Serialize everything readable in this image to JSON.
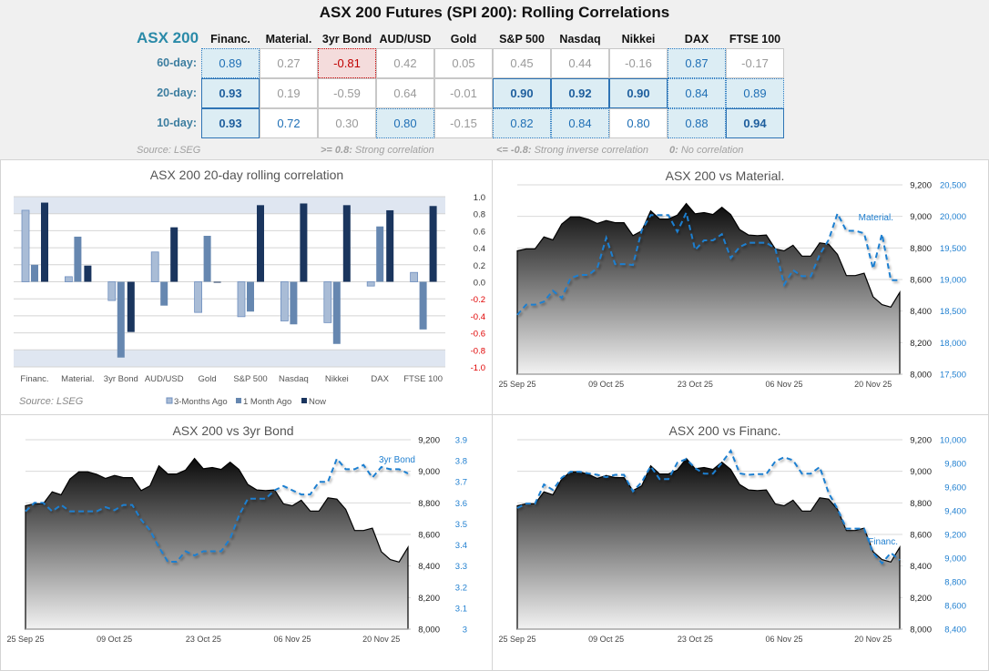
{
  "title": "ASX 200 Futures (SPI 200): Rolling Correlations",
  "table": {
    "corner": "ASX 200",
    "columns": [
      "Financ.",
      "Material.",
      "3yr Bond",
      "AUD/USD",
      "Gold",
      "S&P 500",
      "Nasdaq",
      "Nikkei",
      "DAX",
      "FTSE 100"
    ],
    "rows": [
      {
        "label": "60-day:",
        "cells": [
          {
            "v": "0.89",
            "tone": "hl"
          },
          {
            "v": "0.27",
            "tone": "gray"
          },
          {
            "v": "-0.81",
            "tone": "neg"
          },
          {
            "v": "0.42",
            "tone": "gray"
          },
          {
            "v": "0.05",
            "tone": "gray"
          },
          {
            "v": "0.45",
            "tone": "gray"
          },
          {
            "v": "0.44",
            "tone": "gray"
          },
          {
            "v": "-0.16",
            "tone": "gray"
          },
          {
            "v": "0.87",
            "tone": "hl"
          },
          {
            "v": "-0.17",
            "tone": "gray"
          }
        ]
      },
      {
        "label": "20-day:",
        "cells": [
          {
            "v": "0.93",
            "tone": "bold"
          },
          {
            "v": "0.19",
            "tone": "gray"
          },
          {
            "v": "-0.59",
            "tone": "gray"
          },
          {
            "v": "0.64",
            "tone": "gray"
          },
          {
            "v": "-0.01",
            "tone": "gray"
          },
          {
            "v": "0.90",
            "tone": "bold"
          },
          {
            "v": "0.92",
            "tone": "bold"
          },
          {
            "v": "0.90",
            "tone": "bold"
          },
          {
            "v": "0.84",
            "tone": "hl"
          },
          {
            "v": "0.89",
            "tone": "hl"
          }
        ]
      },
      {
        "label": "10-day:",
        "cells": [
          {
            "v": "0.93",
            "tone": "bold"
          },
          {
            "v": "0.72",
            "tone": "blue"
          },
          {
            "v": "0.30",
            "tone": "gray"
          },
          {
            "v": "0.80",
            "tone": "hl"
          },
          {
            "v": "-0.15",
            "tone": "gray"
          },
          {
            "v": "0.82",
            "tone": "hl"
          },
          {
            "v": "0.84",
            "tone": "hl"
          },
          {
            "v": "0.80",
            "tone": "blue"
          },
          {
            "v": "0.88",
            "tone": "hl"
          },
          {
            "v": "0.94",
            "tone": "bold"
          }
        ]
      }
    ],
    "footer": {
      "source": "Source: LSEG",
      "strong_key": ">= 0.8:",
      "strong_text": "Strong correlation",
      "inverse_key": "<= -0.8:",
      "inverse_text": "Strong inverse correlation",
      "none_key": "0:",
      "none_text": "No correlation"
    }
  },
  "colors": {
    "now": "#1a355e",
    "one_month": "#6687b0",
    "three_month": "#a9bcd6",
    "band": "#dfe6f1",
    "line": "#1f7fd0",
    "negative_tick": "#e00000"
  },
  "chart_data": [
    {
      "type": "bar",
      "title": "ASX 200 20-day rolling correlation",
      "categories": [
        "Financ.",
        "Material.",
        "3yr Bond",
        "AUD/USD",
        "Gold",
        "S&P 500",
        "Nasdaq",
        "Nikkei",
        "DAX",
        "FTSE 100"
      ],
      "series": [
        {
          "name": "3-Months Ago",
          "values": [
            0.84,
            0.06,
            -0.22,
            0.35,
            -0.36,
            -0.41,
            -0.46,
            -0.48,
            -0.05,
            0.11
          ]
        },
        {
          "name": "1 Month Ago",
          "values": [
            0.2,
            0.53,
            -0.89,
            -0.28,
            0.54,
            -0.35,
            -0.5,
            -0.73,
            0.65,
            -0.56
          ]
        },
        {
          "name": "Now",
          "values": [
            0.93,
            0.19,
            -0.59,
            0.64,
            -0.01,
            0.9,
            0.92,
            0.9,
            0.84,
            0.89
          ]
        }
      ],
      "ylim": [
        -1.0,
        1.0
      ],
      "yticks": [
        "1.0",
        "0.8",
        "0.6",
        "0.4",
        "0.2",
        "0.0",
        "-0.2",
        "-0.4",
        "-0.6",
        "-0.8",
        "-1.0"
      ],
      "bands": [
        [
          0.8,
          1.0
        ],
        [
          -1.0,
          -0.8
        ]
      ],
      "grid": true,
      "legend": "bottom",
      "source": "Source: LSEG"
    },
    {
      "type": "area",
      "title": "ASX 200 vs Material.",
      "series_label": "Material.",
      "xticks": [
        "25 Sep 25",
        "09 Oct 25",
        "23 Oct 25",
        "06 Nov 25",
        "20 Nov 25"
      ],
      "yticks_left": [
        "9,200",
        "9,000",
        "8,800",
        "8,600",
        "8,400",
        "8,200",
        "8,000"
      ],
      "yticks_right": [
        "20,500",
        "20,000",
        "19,500",
        "19,000",
        "18,500",
        "18,000",
        "17,500"
      ],
      "ylim_left": [
        8000,
        9200
      ],
      "ylim_right": [
        17500,
        20500
      ],
      "x": [
        "2025-09-25",
        "2025-09-26",
        "2025-09-29",
        "2025-09-30",
        "2025-10-01",
        "2025-10-02",
        "2025-10-03",
        "2025-10-06",
        "2025-10-07",
        "2025-10-08",
        "2025-10-09",
        "2025-10-10",
        "2025-10-13",
        "2025-10-14",
        "2025-10-15",
        "2025-10-16",
        "2025-10-17",
        "2025-10-20",
        "2025-10-21",
        "2025-10-22",
        "2025-10-23",
        "2025-10-24",
        "2025-10-27",
        "2025-10-28",
        "2025-10-29",
        "2025-10-30",
        "2025-10-31",
        "2025-11-03",
        "2025-11-04",
        "2025-11-05",
        "2025-11-06",
        "2025-11-07",
        "2025-11-10",
        "2025-11-11",
        "2025-11-12",
        "2025-11-13",
        "2025-11-14",
        "2025-11-17",
        "2025-11-18",
        "2025-11-19",
        "2025-11-20",
        "2025-11-21",
        "2025-11-24",
        "2025-11-25"
      ],
      "asx200": [
        8782,
        8794,
        8794,
        8870,
        8851,
        8951,
        8997,
        8997,
        8981,
        8955,
        8974,
        8960,
        8960,
        8878,
        8908,
        9035,
        8983,
        8983,
        9008,
        9081,
        9016,
        9024,
        9012,
        9058,
        9012,
        8916,
        8882,
        8878,
        8882,
        8794,
        8782,
        8817,
        8748,
        8748,
        8832,
        8824,
        8759,
        8625,
        8625,
        8640,
        8491,
        8441,
        8425,
        8518
      ],
      "other": [
        18439,
        18602,
        18602,
        18650,
        18822,
        18707,
        19024,
        19072,
        19072,
        19182,
        19661,
        19244,
        19244,
        19230,
        19781,
        20020,
        20020,
        20020,
        19757,
        20059,
        19469,
        19620,
        19620,
        19718,
        19340,
        19517,
        19583,
        19583,
        19583,
        19493,
        18918,
        19148,
        19052,
        19052,
        19397,
        19627,
        20044,
        19771,
        19771,
        19733,
        19172,
        19723,
        18990,
        18990
      ]
    },
    {
      "type": "area",
      "title": "ASX 200 vs 3yr Bond",
      "series_label": "3yr Bond",
      "xticks": [
        "25 Sep 25",
        "09 Oct 25",
        "23 Oct 25",
        "06 Nov 25",
        "20 Nov 25"
      ],
      "yticks_left": [
        "9,200",
        "9,000",
        "8,800",
        "8,600",
        "8,400",
        "8,200",
        "8,000"
      ],
      "yticks_right": [
        "3.9",
        "3.8",
        "3.7",
        "3.6",
        "3.5",
        "3.4",
        "3.3",
        "3.2",
        "3.1",
        "3"
      ],
      "ylim_left": [
        8000,
        9200
      ],
      "ylim_right": [
        3.0,
        3.9
      ],
      "x": [
        "2025-09-25",
        "2025-09-26",
        "2025-09-29",
        "2025-09-30",
        "2025-10-01",
        "2025-10-02",
        "2025-10-03",
        "2025-10-06",
        "2025-10-07",
        "2025-10-08",
        "2025-10-09",
        "2025-10-10",
        "2025-10-13",
        "2025-10-14",
        "2025-10-15",
        "2025-10-16",
        "2025-10-17",
        "2025-10-20",
        "2025-10-21",
        "2025-10-22",
        "2025-10-23",
        "2025-10-24",
        "2025-10-27",
        "2025-10-28",
        "2025-10-29",
        "2025-10-30",
        "2025-10-31",
        "2025-11-03",
        "2025-11-04",
        "2025-11-05",
        "2025-11-06",
        "2025-11-07",
        "2025-11-10",
        "2025-11-11",
        "2025-11-12",
        "2025-11-13",
        "2025-11-14",
        "2025-11-17",
        "2025-11-18",
        "2025-11-19",
        "2025-11-20",
        "2025-11-21",
        "2025-11-24",
        "2025-11-25"
      ],
      "asx200": [
        8782,
        8794,
        8794,
        8870,
        8851,
        8951,
        8997,
        8997,
        8981,
        8955,
        8974,
        8960,
        8960,
        8878,
        8908,
        9035,
        8983,
        8983,
        9008,
        9081,
        9016,
        9024,
        9012,
        9058,
        9012,
        8916,
        8882,
        8878,
        8882,
        8794,
        8782,
        8817,
        8748,
        8748,
        8832,
        8824,
        8759,
        8625,
        8625,
        8640,
        8491,
        8441,
        8425,
        8518
      ],
      "other": [
        3.56,
        3.6,
        3.6,
        3.56,
        3.59,
        3.56,
        3.56,
        3.56,
        3.56,
        3.58,
        3.565,
        3.59,
        3.59,
        3.52,
        3.47,
        3.39,
        3.32,
        3.32,
        3.37,
        3.35,
        3.37,
        3.37,
        3.37,
        3.43,
        3.54,
        3.62,
        3.62,
        3.62,
        3.66,
        3.68,
        3.66,
        3.64,
        3.64,
        3.7,
        3.7,
        3.81,
        3.76,
        3.76,
        3.78,
        3.72,
        3.77,
        3.76,
        3.76,
        3.74
      ]
    },
    {
      "type": "area",
      "title": "ASX 200 vs Financ.",
      "series_label": "Financ.",
      "xticks": [
        "25 Sep 25",
        "09 Oct 25",
        "23 Oct 25",
        "06 Nov 25",
        "20 Nov 25"
      ],
      "yticks_left": [
        "9,200",
        "9,000",
        "8,800",
        "8,600",
        "8,400",
        "8,200",
        "8,000"
      ],
      "yticks_right": [
        "10,000",
        "9,800",
        "9,600",
        "9,400",
        "9,200",
        "9,000",
        "8,800",
        "8,600",
        "8,400"
      ],
      "ylim_left": [
        8000,
        9200
      ],
      "ylim_right": [
        8400,
        10000
      ],
      "x": [
        "2025-09-25",
        "2025-09-26",
        "2025-09-29",
        "2025-09-30",
        "2025-10-01",
        "2025-10-02",
        "2025-10-03",
        "2025-10-06",
        "2025-10-07",
        "2025-10-08",
        "2025-10-09",
        "2025-10-10",
        "2025-10-13",
        "2025-10-14",
        "2025-10-15",
        "2025-10-16",
        "2025-10-17",
        "2025-10-20",
        "2025-10-21",
        "2025-10-22",
        "2025-10-23",
        "2025-10-24",
        "2025-10-27",
        "2025-10-28",
        "2025-10-29",
        "2025-10-30",
        "2025-10-31",
        "2025-11-03",
        "2025-11-04",
        "2025-11-05",
        "2025-11-06",
        "2025-11-07",
        "2025-11-10",
        "2025-11-11",
        "2025-11-12",
        "2025-11-13",
        "2025-11-14",
        "2025-11-17",
        "2025-11-18",
        "2025-11-19",
        "2025-11-20",
        "2025-11-21",
        "2025-11-24",
        "2025-11-25"
      ],
      "asx200": [
        8782,
        8794,
        8794,
        8870,
        8851,
        8951,
        8997,
        8997,
        8981,
        8955,
        8974,
        8960,
        8960,
        8878,
        8908,
        9035,
        8983,
        8983,
        9008,
        9081,
        9016,
        9024,
        9012,
        9058,
        9012,
        8916,
        8882,
        8878,
        8882,
        8794,
        8782,
        8817,
        8748,
        8748,
        8832,
        8824,
        8759,
        8625,
        8625,
        8640,
        8491,
        8441,
        8425,
        8518
      ],
      "other": [
        9423,
        9461,
        9461,
        9622,
        9576,
        9679,
        9730,
        9730,
        9715,
        9704,
        9684,
        9704,
        9704,
        9564,
        9642,
        9776,
        9668,
        9668,
        9806,
        9837,
        9760,
        9714,
        9714,
        9806,
        9908,
        9715,
        9704,
        9710,
        9710,
        9817,
        9852,
        9827,
        9714,
        9714,
        9770,
        9550,
        9417,
        9249,
        9249,
        9249,
        9044,
        8957,
        9044,
        8983
      ]
    }
  ]
}
